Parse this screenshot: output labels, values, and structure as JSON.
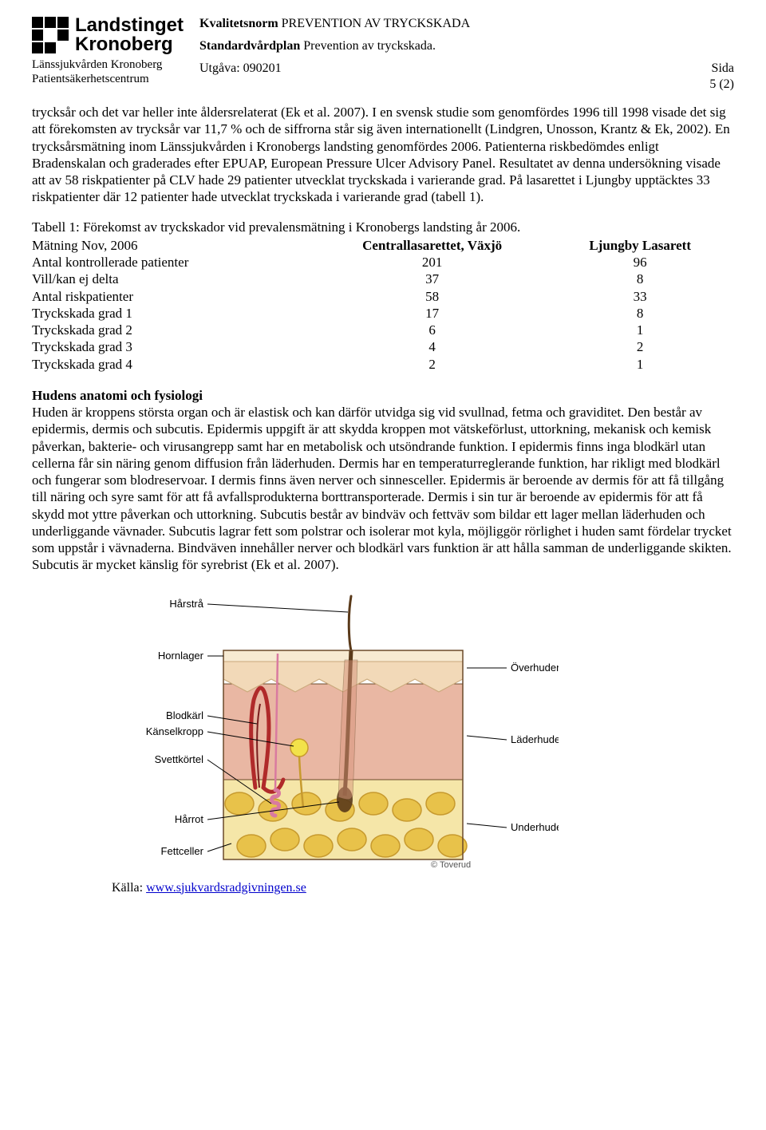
{
  "header": {
    "logo_line1": "Landstinget",
    "logo_line2": "Kronoberg",
    "org_sub1": "Länssjukvården Kronoberg",
    "org_sub2": "Patientsäkerhetscentrum",
    "quality_label": "Kvalitetsnorm",
    "quality_title": "PREVENTION AV TRYCKSKADA",
    "plan_label": "Standardvårdplan",
    "plan_title": "Prevention av tryckskada.",
    "edition": "Utgåva: 090201",
    "page_label": "Sida",
    "page_num": "5 (2)"
  },
  "para1": "trycksår och det var heller inte åldersrelaterat (Ek et al. 2007). I en svensk studie som genomfördes 1996 till 1998 visade det sig att förekomsten av trycksår var 11,7 % och de siffrorna står sig även internationellt (Lindgren, Unosson, Krantz & Ek, 2002). En trycksårsmätning inom Länssjukvården i Kronobergs landsting genomfördes 2006. Patienterna riskbedömdes enligt Bradenskalan och graderades efter EPUAP, European Pressure Ulcer Advisory Panel. Resultatet av denna undersökning visade att av 58 riskpatienter på CLV hade 29 patienter utvecklat tryckskada i varierande grad. På lasarettet i Ljungby upptäcktes 33 riskpatienter där 12 patienter hade utvecklat tryckskada i varierande grad (tabell 1).",
  "table_caption": "Tabell 1: Förekomst av tryckskador vid prevalensmätning i Kronobergs landsting år 2006.",
  "table": {
    "head": [
      "Mätning Nov, 2006",
      "Centrallasarettet, Växjö",
      "Ljungby Lasarett"
    ],
    "rows": [
      [
        "Antal kontrollerade patienter",
        "201",
        "96"
      ],
      [
        "Vill/kan ej delta",
        "37",
        "8"
      ],
      [
        "Antal riskpatienter",
        "58",
        "33"
      ],
      [
        "Tryckskada grad 1",
        "17",
        "8"
      ],
      [
        "Tryckskada grad 2",
        "6",
        "1"
      ],
      [
        "Tryckskada grad 3",
        "4",
        "2"
      ],
      [
        "Tryckskada grad 4",
        "2",
        "1"
      ]
    ]
  },
  "section2_title": "Hudens anatomi och fysiologi",
  "para2": "Huden är kroppens största organ och är elastisk och kan därför utvidga sig vid svullnad, fetma och graviditet. Den består av epidermis, dermis och subcutis. Epidermis uppgift är att skydda kroppen mot vätskeförlust, uttorkning, mekanisk och kemisk påverkan, bakterie- och virusangrepp samt har en metabolisk och utsöndrande funktion. I epidermis finns inga blodkärl utan cellerna får sin näring genom diffusion från läderhuden. Dermis har en temperaturreglerande funktion, har rikligt med blodkärl och fungerar som blodreservoar. I dermis finns även nerver och sinnesceller. Epidermis är beroende av dermis för att få tillgång till näring och syre samt för att få avfallsprodukterna borttransporterade. Dermis i sin tur är beroende av epidermis för att få skydd mot yttre påverkan och uttorkning. Subcutis består av bindväv och fettväv som bildar ett lager mellan läderhuden och underliggande vävnader. Subcutis lagrar fett som polstrar och isolerar mot kyla, möjliggör rörlighet i huden samt fördelar trycket som uppstår i vävnaderna. Bindväven innehåller nerver och blodkärl vars funktion är att hålla samman de underliggande skikten. Subcutis är mycket känslig för syrebrist (Ek et al. 2007).",
  "diagram": {
    "left_labels": [
      "Hårstrå",
      "Hornlager",
      "Blodkärl",
      "Känselkropp",
      "Svettkörtel",
      "Hårrot",
      "Fettceller"
    ],
    "right_labels": [
      "Överhuden",
      "Läderhuden",
      "Underhuden"
    ],
    "signature": "© Toverud",
    "colors": {
      "epidermis_top": "#f2d9b8",
      "epidermis_line": "#c9a87a",
      "dermis": "#e9b7a3",
      "dermis_dark": "#d6937b",
      "subcutis": "#f5e6a8",
      "fat": "#e8c24a",
      "fat_dark": "#c79a2e",
      "blood": "#b02a2a",
      "vessel_dark": "#7a1c1c",
      "hair": "#5a3a1a",
      "sweat": "#e7b94a",
      "nerve": "#f2e24a",
      "outline": "#6b4a2a"
    }
  },
  "source_label": "Källa: ",
  "source_link_text": "www.sjukvardsradgivningen.se"
}
